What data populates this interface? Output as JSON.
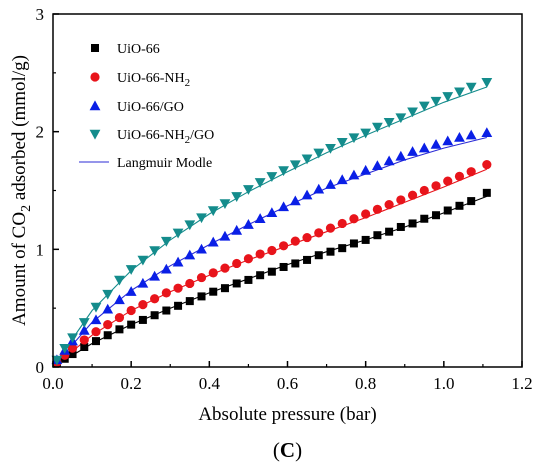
{
  "chart_data": {
    "type": "scatter",
    "xlabel": "Absolute pressure (bar)",
    "ylabel_parts": [
      "Amount of CO",
      "2",
      " adsorbed (mmol/g)"
    ],
    "xlim": [
      0.0,
      1.2
    ],
    "ylim": [
      0,
      3
    ],
    "xticks": [
      "0.0",
      "0.2",
      "0.4",
      "0.6",
      "0.8",
      "1.0",
      "1.2"
    ],
    "yticks": [
      "0",
      "1",
      "2",
      "3"
    ],
    "panel_label": {
      "open": "(",
      "letter": "C",
      "close": ")"
    },
    "grid": false,
    "legend_placement": "top-left",
    "series": [
      {
        "name": "UiO-66",
        "marker": "square",
        "color": "#000000",
        "x": [
          0.01,
          0.03,
          0.05,
          0.08,
          0.11,
          0.14,
          0.17,
          0.2,
          0.23,
          0.26,
          0.29,
          0.32,
          0.35,
          0.38,
          0.41,
          0.44,
          0.47,
          0.5,
          0.53,
          0.56,
          0.59,
          0.62,
          0.65,
          0.68,
          0.71,
          0.74,
          0.77,
          0.8,
          0.83,
          0.86,
          0.89,
          0.92,
          0.95,
          0.98,
          1.01,
          1.04,
          1.07,
          1.11
        ],
        "y": [
          0.03,
          0.07,
          0.11,
          0.17,
          0.22,
          0.27,
          0.32,
          0.36,
          0.4,
          0.44,
          0.48,
          0.52,
          0.56,
          0.6,
          0.64,
          0.67,
          0.71,
          0.74,
          0.78,
          0.81,
          0.85,
          0.88,
          0.91,
          0.95,
          0.98,
          1.01,
          1.05,
          1.08,
          1.12,
          1.15,
          1.19,
          1.22,
          1.26,
          1.29,
          1.33,
          1.37,
          1.41,
          1.48
        ]
      },
      {
        "name_parts": [
          "UiO-66-NH",
          "2",
          ""
        ],
        "marker": "circle",
        "color": "#e8141b",
        "x": [
          0.01,
          0.03,
          0.05,
          0.08,
          0.11,
          0.14,
          0.17,
          0.2,
          0.23,
          0.26,
          0.29,
          0.32,
          0.35,
          0.38,
          0.41,
          0.44,
          0.47,
          0.5,
          0.53,
          0.56,
          0.59,
          0.62,
          0.65,
          0.68,
          0.71,
          0.74,
          0.77,
          0.8,
          0.83,
          0.86,
          0.89,
          0.92,
          0.95,
          0.98,
          1.01,
          1.04,
          1.07,
          1.11
        ],
        "y": [
          0.04,
          0.1,
          0.16,
          0.23,
          0.3,
          0.36,
          0.42,
          0.48,
          0.53,
          0.58,
          0.63,
          0.67,
          0.71,
          0.76,
          0.8,
          0.84,
          0.88,
          0.92,
          0.96,
          0.99,
          1.03,
          1.07,
          1.1,
          1.14,
          1.18,
          1.22,
          1.26,
          1.3,
          1.34,
          1.38,
          1.42,
          1.46,
          1.5,
          1.54,
          1.58,
          1.62,
          1.66,
          1.72
        ]
      },
      {
        "name": "UiO-66/GO",
        "marker": "triangle-up",
        "color": "#0a1fe6",
        "x": [
          0.01,
          0.03,
          0.05,
          0.08,
          0.11,
          0.14,
          0.17,
          0.2,
          0.23,
          0.26,
          0.29,
          0.32,
          0.35,
          0.38,
          0.41,
          0.44,
          0.47,
          0.5,
          0.53,
          0.56,
          0.59,
          0.62,
          0.65,
          0.68,
          0.71,
          0.74,
          0.77,
          0.8,
          0.83,
          0.86,
          0.89,
          0.92,
          0.95,
          0.98,
          1.01,
          1.04,
          1.07,
          1.11
        ],
        "y": [
          0.06,
          0.14,
          0.22,
          0.31,
          0.4,
          0.49,
          0.57,
          0.64,
          0.71,
          0.77,
          0.83,
          0.89,
          0.95,
          1.0,
          1.06,
          1.11,
          1.16,
          1.21,
          1.26,
          1.31,
          1.36,
          1.41,
          1.46,
          1.51,
          1.55,
          1.59,
          1.63,
          1.67,
          1.71,
          1.75,
          1.79,
          1.83,
          1.86,
          1.89,
          1.92,
          1.95,
          1.97,
          1.99
        ]
      },
      {
        "name_parts": [
          "UiO-66-NH",
          "2",
          "/GO"
        ],
        "marker": "triangle-down",
        "color": "#148c8c",
        "x": [
          0.01,
          0.03,
          0.05,
          0.08,
          0.11,
          0.14,
          0.17,
          0.2,
          0.23,
          0.26,
          0.29,
          0.32,
          0.35,
          0.38,
          0.41,
          0.44,
          0.47,
          0.5,
          0.53,
          0.56,
          0.59,
          0.62,
          0.65,
          0.68,
          0.71,
          0.74,
          0.77,
          0.8,
          0.83,
          0.86,
          0.89,
          0.92,
          0.95,
          0.98,
          1.01,
          1.04,
          1.07,
          1.11
        ],
        "y": [
          0.06,
          0.16,
          0.25,
          0.38,
          0.51,
          0.62,
          0.74,
          0.83,
          0.91,
          0.99,
          1.07,
          1.14,
          1.21,
          1.27,
          1.33,
          1.39,
          1.45,
          1.51,
          1.57,
          1.62,
          1.67,
          1.72,
          1.77,
          1.82,
          1.86,
          1.91,
          1.95,
          1.99,
          2.04,
          2.08,
          2.12,
          2.17,
          2.22,
          2.26,
          2.3,
          2.34,
          2.38,
          2.42
        ]
      }
    ],
    "fit": {
      "name": "Langmuir Modle",
      "color": "#2b2bd6",
      "curves": [
        {
          "x": [
            0.0,
            0.1,
            0.2,
            0.3,
            0.4,
            0.5,
            0.6,
            0.7,
            0.8,
            0.9,
            1.0,
            1.11
          ],
          "y": [
            0.0,
            0.2,
            0.36,
            0.5,
            0.63,
            0.75,
            0.87,
            0.98,
            1.08,
            1.19,
            1.31,
            1.45
          ],
          "color": "#000000"
        },
        {
          "x": [
            0.0,
            0.1,
            0.2,
            0.3,
            0.4,
            0.5,
            0.6,
            0.7,
            0.8,
            0.9,
            1.0,
            1.11
          ],
          "y": [
            0.0,
            0.27,
            0.48,
            0.64,
            0.78,
            0.91,
            1.03,
            1.15,
            1.27,
            1.4,
            1.53,
            1.68
          ],
          "color": "#e8141b"
        },
        {
          "x": [
            0.0,
            0.1,
            0.2,
            0.3,
            0.4,
            0.5,
            0.6,
            0.7,
            0.8,
            0.9,
            1.0,
            1.11
          ],
          "y": [
            0.0,
            0.38,
            0.65,
            0.86,
            1.04,
            1.21,
            1.37,
            1.52,
            1.64,
            1.76,
            1.86,
            1.95
          ],
          "color": "#2b2bd6"
        },
        {
          "x": [
            0.0,
            0.1,
            0.2,
            0.3,
            0.4,
            0.5,
            0.6,
            0.7,
            0.8,
            0.9,
            1.0,
            1.11
          ],
          "y": [
            0.0,
            0.48,
            0.82,
            1.08,
            1.3,
            1.49,
            1.66,
            1.82,
            1.97,
            2.11,
            2.25,
            2.38
          ],
          "color": "#148c8c"
        }
      ]
    }
  }
}
